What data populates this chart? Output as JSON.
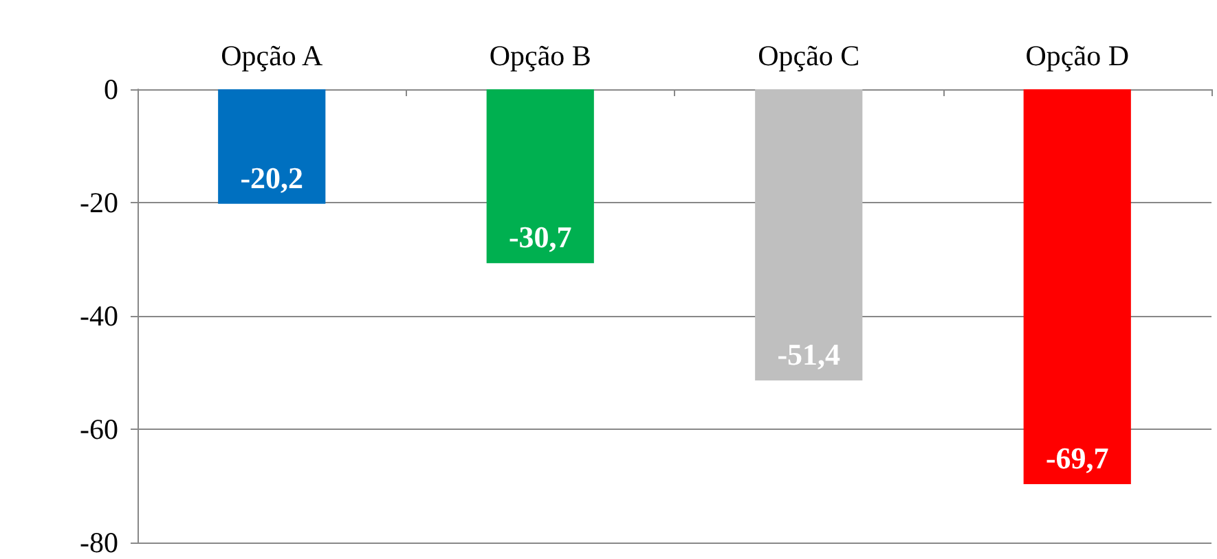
{
  "chart_data": {
    "type": "bar",
    "categories": [
      "Opção A",
      "Opção B",
      "Opção C",
      "Opção D"
    ],
    "values": [
      -20.2,
      -30.7,
      -51.4,
      -69.7
    ],
    "colors": [
      "#0070c0",
      "#00b050",
      "#bfbfbf",
      "#ff0000"
    ],
    "value_labels": [
      "-20,2",
      "-30,7",
      "-51,4",
      "-69,7"
    ],
    "ylim": [
      -80,
      0
    ],
    "yticks": [
      -80,
      -60,
      -40,
      -20,
      0
    ],
    "grid": "y"
  }
}
